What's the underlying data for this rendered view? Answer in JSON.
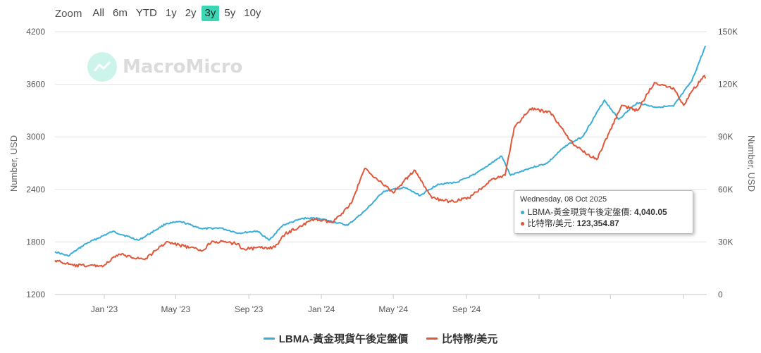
{
  "zoom": {
    "label": "Zoom",
    "buttons": [
      "All",
      "6m",
      "YTD",
      "1y",
      "2y",
      "3y",
      "5y",
      "10y"
    ],
    "active": "3y",
    "accent_color": "#3dd6b5"
  },
  "watermark": {
    "text": "MacroMicro"
  },
  "tooltip": {
    "date": "Wednesday, 08 Oct 2025",
    "rows": [
      {
        "label": "LBMA-黃金現貨午後定盤價",
        "value": "4,040.05",
        "color": "#3aaed8"
      },
      {
        "label": "比特幣/美元",
        "value": "123,354.87",
        "color": "#e0573a"
      }
    ]
  },
  "chart_data": {
    "type": "line",
    "x_tick_labels": [
      "Jan '23",
      "May '23",
      "Sep '23",
      "Jan '24",
      "May '24",
      "Sep '24"
    ],
    "y_left": {
      "label": "Number, USD",
      "ticks": [
        "4200",
        "3600",
        "3000",
        "2400",
        "1800",
        "1200"
      ],
      "range": [
        1200,
        4200
      ]
    },
    "y_right": {
      "label": "Number, USD",
      "ticks": [
        "150K",
        "120K",
        "90K",
        "60K",
        "30K",
        "0"
      ],
      "range": [
        0,
        150000
      ]
    },
    "series": [
      {
        "name": "LBMA-黃金現貨午後定盤價",
        "axis": "left",
        "color": "#3aaed8",
        "points": [
          [
            "2022-10-10",
            1690
          ],
          [
            "2022-11-01",
            1640
          ],
          [
            "2022-12-01",
            1780
          ],
          [
            "2023-01-15",
            1920
          ],
          [
            "2023-02-28",
            1820
          ],
          [
            "2023-04-15",
            2010
          ],
          [
            "2023-05-10",
            2030
          ],
          [
            "2023-06-15",
            1950
          ],
          [
            "2023-07-15",
            1960
          ],
          [
            "2023-08-15",
            1900
          ],
          [
            "2023-09-15",
            1925
          ],
          [
            "2023-10-05",
            1820
          ],
          [
            "2023-10-28",
            1990
          ],
          [
            "2023-12-01",
            2070
          ],
          [
            "2023-12-28",
            2070
          ],
          [
            "2024-01-15",
            2040
          ],
          [
            "2024-02-14",
            1990
          ],
          [
            "2024-03-15",
            2160
          ],
          [
            "2024-04-15",
            2380
          ],
          [
            "2024-05-20",
            2420
          ],
          [
            "2024-06-15",
            2330
          ],
          [
            "2024-07-15",
            2460
          ],
          [
            "2024-08-15",
            2480
          ],
          [
            "2024-09-15",
            2570
          ],
          [
            "2024-10-30",
            2780
          ],
          [
            "2024-11-14",
            2560
          ],
          [
            "2024-12-15",
            2640
          ],
          [
            "2025-01-15",
            2700
          ],
          [
            "2025-02-15",
            2900
          ],
          [
            "2025-03-15",
            3000
          ],
          [
            "2025-04-21",
            3420
          ],
          [
            "2025-05-15",
            3200
          ],
          [
            "2025-06-15",
            3390
          ],
          [
            "2025-07-15",
            3340
          ],
          [
            "2025-08-15",
            3350
          ],
          [
            "2025-09-15",
            3640
          ],
          [
            "2025-10-08",
            4040.05
          ]
        ]
      },
      {
        "name": "比特幣/美元",
        "axis": "right",
        "color": "#e0573a",
        "points": [
          [
            "2022-10-10",
            19500
          ],
          [
            "2022-11-10",
            16500
          ],
          [
            "2022-12-31",
            16500
          ],
          [
            "2023-01-25",
            23000
          ],
          [
            "2023-03-10",
            20000
          ],
          [
            "2023-04-15",
            30000
          ],
          [
            "2023-06-15",
            25000
          ],
          [
            "2023-07-01",
            30500
          ],
          [
            "2023-08-15",
            29000
          ],
          [
            "2023-08-20",
            26000
          ],
          [
            "2023-10-15",
            27000
          ],
          [
            "2023-11-01",
            34500
          ],
          [
            "2023-12-20",
            43000
          ],
          [
            "2024-01-20",
            41000
          ],
          [
            "2024-02-20",
            52000
          ],
          [
            "2024-03-14",
            72000
          ],
          [
            "2024-05-01",
            58000
          ],
          [
            "2024-06-05",
            71000
          ],
          [
            "2024-07-05",
            55000
          ],
          [
            "2024-08-05",
            53000
          ],
          [
            "2024-09-05",
            55000
          ],
          [
            "2024-10-15",
            66000
          ],
          [
            "2024-11-05",
            68000
          ],
          [
            "2024-11-20",
            95000
          ],
          [
            "2024-12-17",
            106000
          ],
          [
            "2025-01-20",
            104000
          ],
          [
            "2025-03-01",
            85000
          ],
          [
            "2025-04-08",
            77000
          ],
          [
            "2025-05-20",
            108000
          ],
          [
            "2025-06-15",
            105000
          ],
          [
            "2025-07-14",
            121000
          ],
          [
            "2025-08-15",
            118000
          ],
          [
            "2025-09-01",
            108000
          ],
          [
            "2025-09-15",
            116000
          ],
          [
            "2025-10-06",
            125000
          ],
          [
            "2025-10-08",
            123354.87
          ]
        ]
      }
    ],
    "grid": "horizontal",
    "legend_position": "bottom-center"
  }
}
